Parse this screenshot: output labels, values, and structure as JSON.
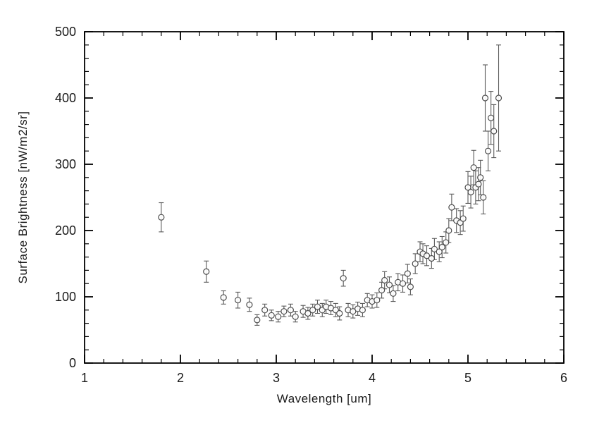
{
  "chart_data": {
    "type": "scatter",
    "title": "",
    "xlabel": "Wavelength [um]",
    "ylabel": "Surface Brightness [nW/m2/sr]",
    "xlim": [
      1,
      6
    ],
    "ylim": [
      0,
      500
    ],
    "xticks": [
      1,
      2,
      3,
      4,
      5,
      6
    ],
    "xtick_labels": [
      "1",
      "2",
      "3",
      "4",
      "5",
      "6"
    ],
    "yticks": [
      0,
      100,
      200,
      300,
      400,
      500
    ],
    "ytick_labels": [
      "0",
      "100",
      "200",
      "300",
      "400",
      "500"
    ],
    "x_minor_step": 0.2,
    "y_minor_step": 20,
    "grid": false,
    "legend": null,
    "marker": "open-circle",
    "marker_color": "#4d4d4d",
    "errorbar_color": "#5a5a5a",
    "axis_color": "#000000",
    "points": [
      [
        1.8,
        220,
        22
      ],
      [
        2.27,
        138,
        16
      ],
      [
        2.45,
        99,
        10
      ],
      [
        2.6,
        95,
        12
      ],
      [
        2.72,
        88,
        10
      ],
      [
        2.8,
        65,
        8
      ],
      [
        2.88,
        80,
        9
      ],
      [
        2.95,
        72,
        8
      ],
      [
        3.02,
        70,
        8
      ],
      [
        3.08,
        78,
        8
      ],
      [
        3.15,
        80,
        9
      ],
      [
        3.2,
        70,
        8
      ],
      [
        3.28,
        78,
        9
      ],
      [
        3.33,
        75,
        9
      ],
      [
        3.38,
        80,
        9
      ],
      [
        3.43,
        85,
        10
      ],
      [
        3.48,
        80,
        10
      ],
      [
        3.52,
        85,
        10
      ],
      [
        3.57,
        83,
        10
      ],
      [
        3.62,
        80,
        10
      ],
      [
        3.66,
        75,
        10
      ],
      [
        3.7,
        128,
        12
      ],
      [
        3.75,
        80,
        10
      ],
      [
        3.8,
        78,
        10
      ],
      [
        3.85,
        82,
        10
      ],
      [
        3.9,
        80,
        10
      ],
      [
        3.95,
        95,
        10
      ],
      [
        4.0,
        93,
        10
      ],
      [
        4.05,
        95,
        11
      ],
      [
        4.1,
        110,
        12
      ],
      [
        4.13,
        125,
        13
      ],
      [
        4.18,
        118,
        12
      ],
      [
        4.22,
        105,
        12
      ],
      [
        4.27,
        122,
        13
      ],
      [
        4.32,
        120,
        13
      ],
      [
        4.37,
        135,
        14
      ],
      [
        4.4,
        115,
        12
      ],
      [
        4.45,
        150,
        15
      ],
      [
        4.5,
        168,
        15
      ],
      [
        4.53,
        165,
        15
      ],
      [
        4.57,
        162,
        15
      ],
      [
        4.62,
        158,
        15
      ],
      [
        4.65,
        172,
        16
      ],
      [
        4.7,
        168,
        15
      ],
      [
        4.73,
        175,
        16
      ],
      [
        4.77,
        182,
        16
      ],
      [
        4.8,
        200,
        18
      ],
      [
        4.83,
        235,
        20
      ],
      [
        4.88,
        215,
        18
      ],
      [
        4.92,
        212,
        18
      ],
      [
        4.95,
        218,
        19
      ],
      [
        5.0,
        265,
        24
      ],
      [
        5.03,
        258,
        24
      ],
      [
        5.06,
        295,
        26
      ],
      [
        5.08,
        265,
        25
      ],
      [
        5.11,
        270,
        25
      ],
      [
        5.13,
        280,
        26
      ],
      [
        5.16,
        250,
        25
      ],
      [
        5.18,
        400,
        50
      ],
      [
        5.21,
        320,
        30
      ],
      [
        5.24,
        370,
        40
      ],
      [
        5.27,
        350,
        40
      ],
      [
        5.32,
        400,
        80
      ]
    ]
  }
}
